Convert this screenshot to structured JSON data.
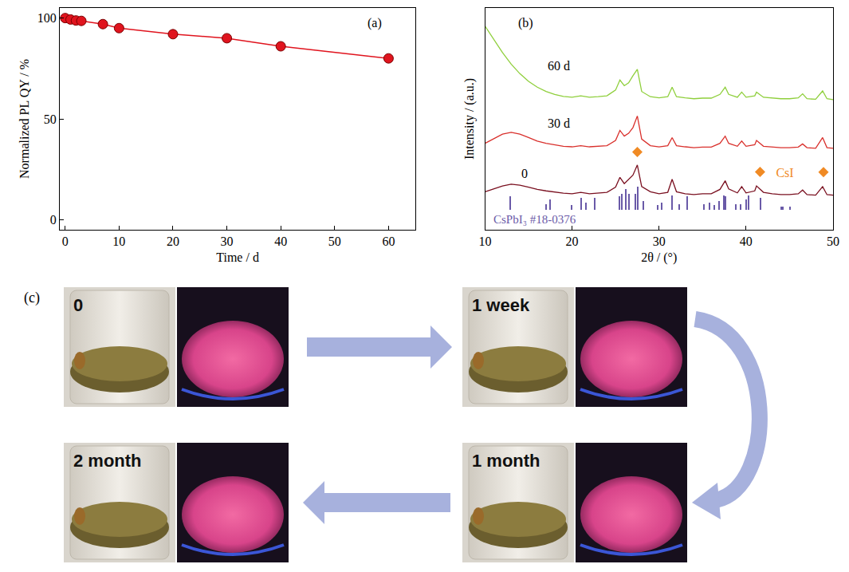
{
  "chart_data": [
    {
      "type": "line",
      "annotations": [
        "(a)"
      ],
      "x_label": "Time / d",
      "y_label": "Normalized PL QY / %",
      "x": [
        0,
        1,
        2,
        3,
        7,
        10,
        20,
        30,
        40,
        60
      ],
      "values": [
        100,
        99.3,
        98.8,
        98.6,
        97,
        95,
        92,
        90,
        86,
        80
      ],
      "color": "#e0141e",
      "marker": "circle",
      "line_style": "solid",
      "xlim": [
        -1,
        65
      ],
      "xticks": [
        0,
        10,
        20,
        30,
        40,
        50,
        60
      ],
      "ylim": [
        -5,
        105
      ],
      "yticks": [
        0,
        50,
        100
      ],
      "grid": false
    },
    {
      "type": "line",
      "annotations": [
        "(b)"
      ],
      "x_label": "2θ / (°)",
      "y_label": "Intensity / (a.u.)",
      "x": [
        10,
        11,
        12,
        13,
        14,
        15,
        16,
        17,
        18,
        19,
        20,
        21,
        22,
        23,
        24,
        25,
        25.5,
        26,
        26.5,
        27,
        27.5,
        28,
        29,
        30,
        31,
        31.5,
        32,
        33,
        34,
        35,
        36,
        37,
        37.6,
        38,
        39,
        39.5,
        40,
        41,
        41.2,
        42,
        43,
        44,
        45,
        46,
        46.5,
        47,
        48,
        48.8,
        49.3,
        50
      ],
      "series": [
        {
          "name": "60 d",
          "color": "#8fcf3c",
          "values": [
            6.37,
            5.9,
            5.45,
            5.05,
            4.72,
            4.45,
            4.25,
            4.1,
            4.0,
            3.93,
            3.9,
            3.95,
            3.9,
            3.92,
            3.95,
            4.15,
            4.5,
            4.3,
            4.4,
            4.65,
            4.87,
            4.1,
            3.92,
            3.88,
            3.92,
            4.25,
            3.92,
            3.88,
            3.85,
            3.87,
            3.87,
            4.0,
            4.25,
            4.0,
            3.9,
            4.08,
            3.9,
            3.95,
            4.08,
            3.9,
            3.87,
            3.85,
            3.85,
            3.88,
            4.02,
            3.85,
            3.83,
            4.12,
            3.85,
            3.82
          ]
        },
        {
          "name": "30 d",
          "color": "#d9302c",
          "values": [
            2.3,
            2.45,
            2.62,
            2.68,
            2.62,
            2.5,
            2.38,
            2.3,
            2.25,
            2.2,
            2.18,
            2.22,
            2.18,
            2.2,
            2.22,
            2.4,
            2.75,
            2.55,
            2.65,
            2.85,
            3.25,
            2.45,
            2.22,
            2.18,
            2.22,
            2.5,
            2.22,
            2.18,
            2.15,
            2.17,
            2.17,
            2.3,
            2.55,
            2.3,
            2.2,
            2.38,
            2.2,
            2.25,
            2.4,
            2.2,
            2.17,
            2.15,
            2.15,
            2.17,
            2.28,
            2.15,
            2.13,
            2.5,
            2.15,
            2.13
          ]
        },
        {
          "name": "0",
          "color": "#7a1020",
          "values": [
            0.62,
            0.72,
            0.82,
            0.88,
            0.85,
            0.78,
            0.7,
            0.65,
            0.6,
            0.57,
            0.55,
            0.6,
            0.55,
            0.58,
            0.6,
            0.78,
            1.12,
            0.9,
            1.05,
            1.2,
            1.55,
            0.8,
            0.62,
            0.55,
            0.6,
            1.05,
            0.62,
            0.55,
            0.52,
            0.55,
            0.55,
            0.7,
            1.0,
            0.72,
            0.58,
            0.8,
            0.58,
            0.65,
            0.82,
            0.6,
            0.55,
            0.52,
            0.52,
            0.55,
            0.68,
            0.52,
            0.5,
            0.8,
            0.52,
            0.5
          ]
        },
        {
          "name": "CsPbI₃ #18-0376",
          "type": "bar",
          "color": "#6a5aa8",
          "x": [
            12.9,
            17.0,
            17.4,
            19.9,
            21.0,
            21.6,
            22.6,
            25.4,
            25.7,
            26.1,
            26.5,
            27.2,
            27.5,
            28.2,
            29.8,
            30.3,
            31.5,
            32.3,
            33.2,
            35.1,
            35.8,
            36.3,
            36.9,
            37.4,
            37.6,
            38.8,
            39.3,
            40.0,
            40.3,
            41.6,
            44.0,
            44.2,
            45.0
          ],
          "values": [
            0.45,
            0.2,
            0.35,
            0.15,
            0.4,
            0.25,
            0.4,
            0.45,
            0.55,
            0.7,
            0.55,
            0.55,
            0.8,
            0.3,
            0.15,
            0.25,
            0.5,
            0.2,
            0.45,
            0.2,
            0.25,
            0.15,
            0.3,
            0.5,
            0.45,
            0.2,
            0.2,
            0.35,
            0.5,
            0.4,
            0.1,
            0.1,
            0.1
          ]
        },
        {
          "name": "CsI",
          "type": "scatter",
          "marker": "diamond",
          "color": "#f08a24",
          "x": [
            27.5,
            48.9
          ],
          "values": [
            2.0,
            1.3
          ]
        }
      ],
      "xlim": [
        10,
        50
      ],
      "xticks": [
        10,
        20,
        30,
        40,
        50
      ],
      "ylim": [
        -0.7,
        7
      ],
      "tick_labels": "x",
      "legend": "right",
      "grid": false
    }
  ],
  "photos": {
    "annotations": [
      "(c)"
    ],
    "frames": [
      "0",
      "1 week",
      "1 month",
      "2 month"
    ]
  }
}
